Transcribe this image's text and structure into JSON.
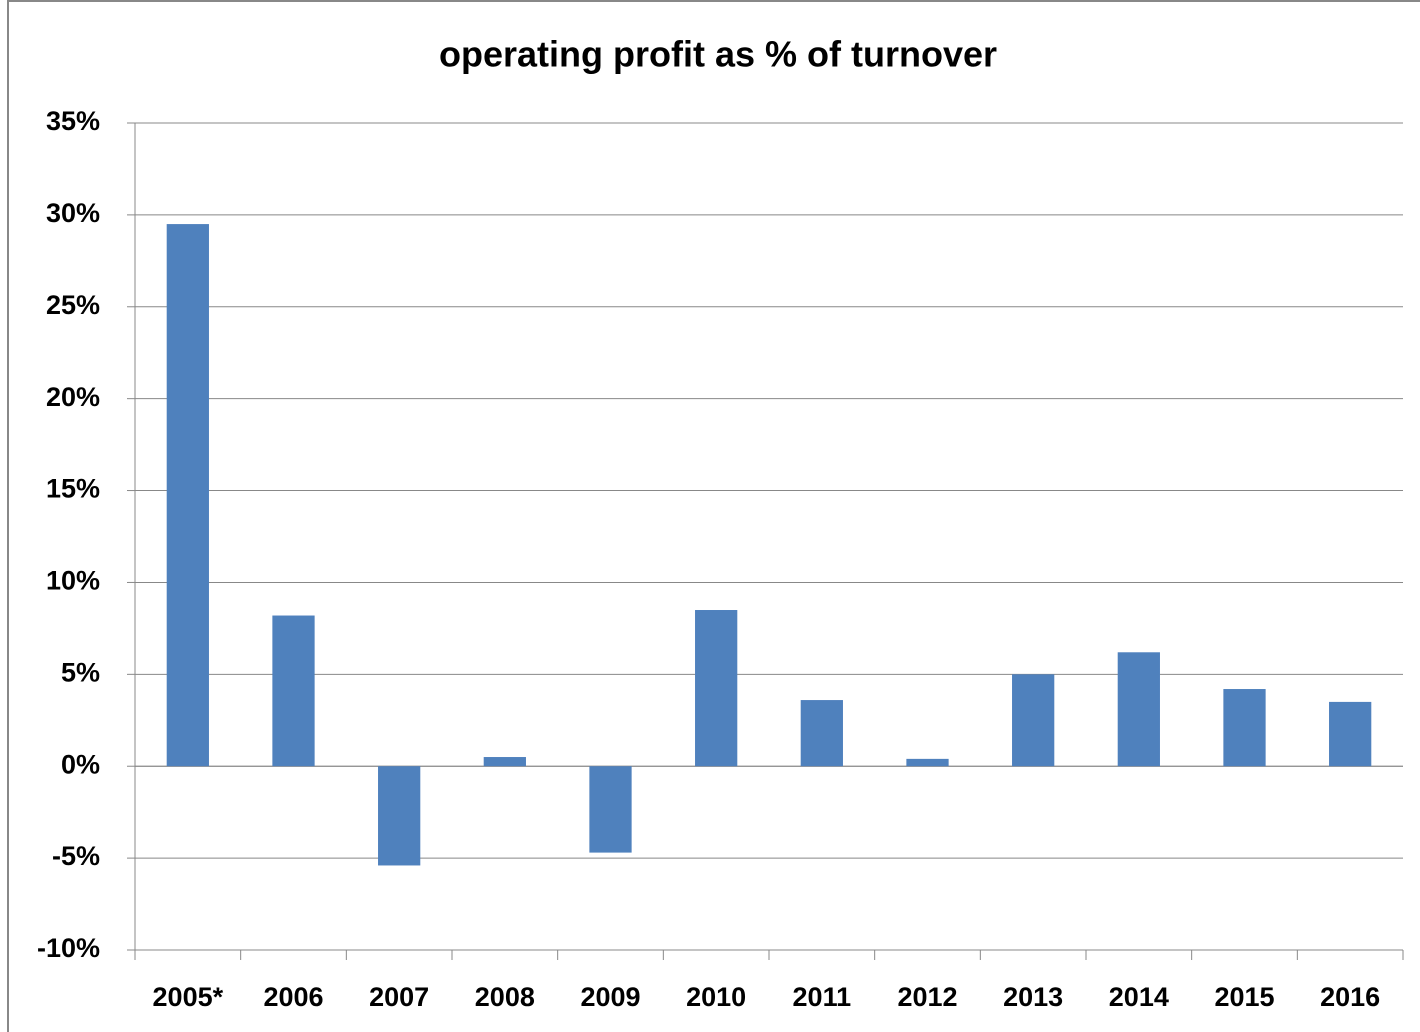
{
  "chart_data": {
    "type": "bar",
    "title": "operating profit as % of turnover",
    "categories": [
      "2005*",
      "2006",
      "2007",
      "2008",
      "2009",
      "2010",
      "2011",
      "2012",
      "2013",
      "2014",
      "2015",
      "2016"
    ],
    "values": [
      29.5,
      8.2,
      -5.4,
      0.5,
      -4.7,
      8.5,
      3.6,
      0.4,
      5.0,
      6.2,
      4.2,
      3.5
    ],
    "color": "#4f81bd",
    "ylim": [
      -10,
      35
    ],
    "yticks": [
      {
        "value": -10,
        "label": "-10%"
      },
      {
        "value": -5,
        "label": "-5%"
      },
      {
        "value": 0,
        "label": "0%"
      },
      {
        "value": 5,
        "label": "5%"
      },
      {
        "value": 10,
        "label": "10%"
      },
      {
        "value": 15,
        "label": "15%"
      },
      {
        "value": 20,
        "label": "20%"
      },
      {
        "value": 25,
        "label": "25%"
      },
      {
        "value": 30,
        "label": "30%"
      },
      {
        "value": 35,
        "label": "35%"
      }
    ],
    "grid": true
  }
}
